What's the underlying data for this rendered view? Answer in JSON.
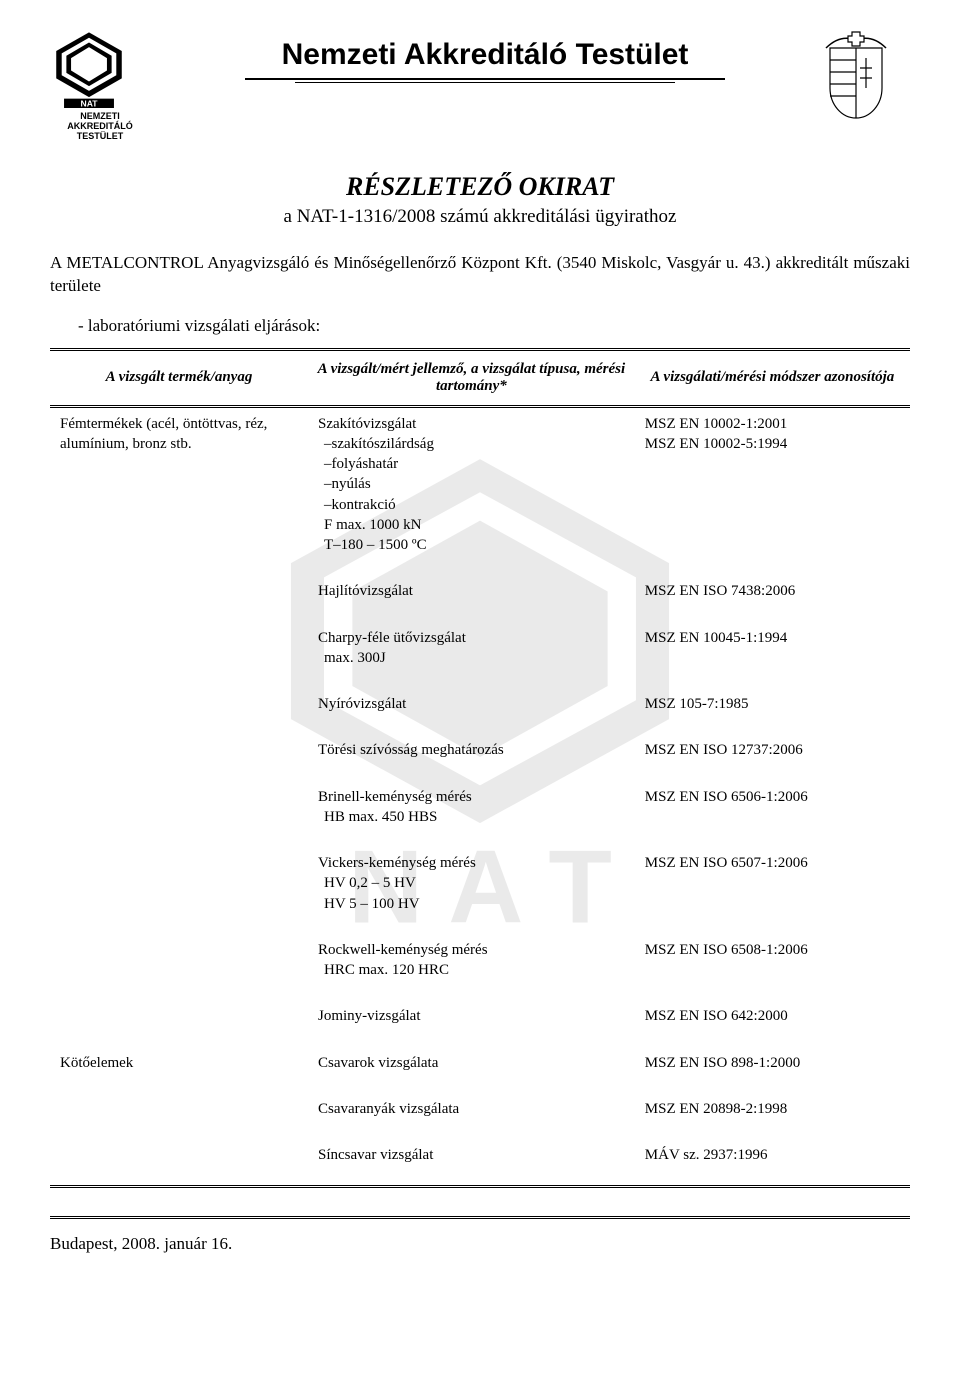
{
  "colors": {
    "text": "#000000",
    "background": "#ffffff",
    "watermark": "#000000",
    "watermark_opacity": 0.08
  },
  "fonts": {
    "body_family": "Times New Roman",
    "heading_family": "Arial",
    "org_title_size_pt": 22,
    "doc_title_size_pt": 19,
    "body_size_pt": 12
  },
  "header": {
    "org_title": "Nemzeti Akkreditáló Testület",
    "logo_left_label": "NEMZETI AKKREDITÁLÓ TESTÜLET",
    "logo_left_badge": "NAT"
  },
  "document": {
    "title": "RÉSZLETEZŐ OKIRAT",
    "subtitle": "a NAT-1-1316/2008 számú akkreditálási ügyirathoz",
    "intro": "A METALCONTROL Anyagvizsgáló és Minőségellenőrző Központ Kft. (3540 Miskolc, Vasgyár u. 43.) akkreditált műszaki területe",
    "section_header": "-   laboratóriumi vizsgálati eljárások:"
  },
  "table": {
    "columns": [
      "A vizsgált termék/anyag",
      "A vizsgált/mért jellemző, a vizsgálat típusa, mérési tartomány*",
      "A vizsgálati/mérési módszer azonosítója"
    ],
    "rows": [
      {
        "product": "Fémtermékek (acél, öntöttvas, réz, alumínium, bronz stb.",
        "tests": [
          {
            "name": "Szakítóvizsgálat",
            "subs": [
              "–szakítószilárdság",
              "–folyáshatár",
              "–nyúlás",
              "–kontrakció",
              "F max. 1000 kN",
              "T–180 – 1500 ºC"
            ],
            "standards": [
              "MSZ EN 10002-1:2001",
              "MSZ EN 10002-5:1994"
            ]
          },
          {
            "name": "Hajlítóvizsgálat",
            "subs": [],
            "standards": [
              "MSZ EN ISO 7438:2006"
            ]
          },
          {
            "name": "Charpy-féle ütővizsgálat",
            "subs": [
              "max. 300J"
            ],
            "standards": [
              "MSZ EN 10045-1:1994"
            ]
          },
          {
            "name": "Nyíróvizsgálat",
            "subs": [],
            "standards": [
              "MSZ 105-7:1985"
            ]
          },
          {
            "name": "Törési szívósság meghatározás",
            "subs": [],
            "standards": [
              "MSZ EN ISO 12737:2006"
            ]
          },
          {
            "name": "Brinell-keménység mérés",
            "subs": [
              "HB max. 450 HBS"
            ],
            "standards": [
              "MSZ EN ISO 6506-1:2006"
            ]
          },
          {
            "name": "Vickers-keménység mérés",
            "subs": [
              "HV 0,2 – 5 HV",
              "HV 5 – 100 HV"
            ],
            "standards": [
              "MSZ EN ISO 6507-1:2006"
            ]
          },
          {
            "name": "Rockwell-keménység mérés",
            "subs": [
              "HRC max. 120 HRC"
            ],
            "standards": [
              "MSZ EN ISO 6508-1:2006"
            ]
          },
          {
            "name": "Jominy-vizsgálat",
            "subs": [],
            "standards": [
              "MSZ EN ISO 642:2000"
            ]
          }
        ]
      },
      {
        "product": "Kötőelemek",
        "tests": [
          {
            "name": "Csavarok vizsgálata",
            "subs": [],
            "standards": [
              "MSZ EN ISO 898-1:2000"
            ]
          },
          {
            "name": "Csavaranyák vizsgálata",
            "subs": [],
            "standards": [
              "MSZ EN 20898-2:1998"
            ]
          },
          {
            "name": "Síncsavar vizsgálat",
            "subs": [],
            "standards": [
              "MÁV sz. 2937:1996"
            ]
          }
        ]
      }
    ]
  },
  "footer": {
    "text": "Budapest, 2008. január 16."
  }
}
